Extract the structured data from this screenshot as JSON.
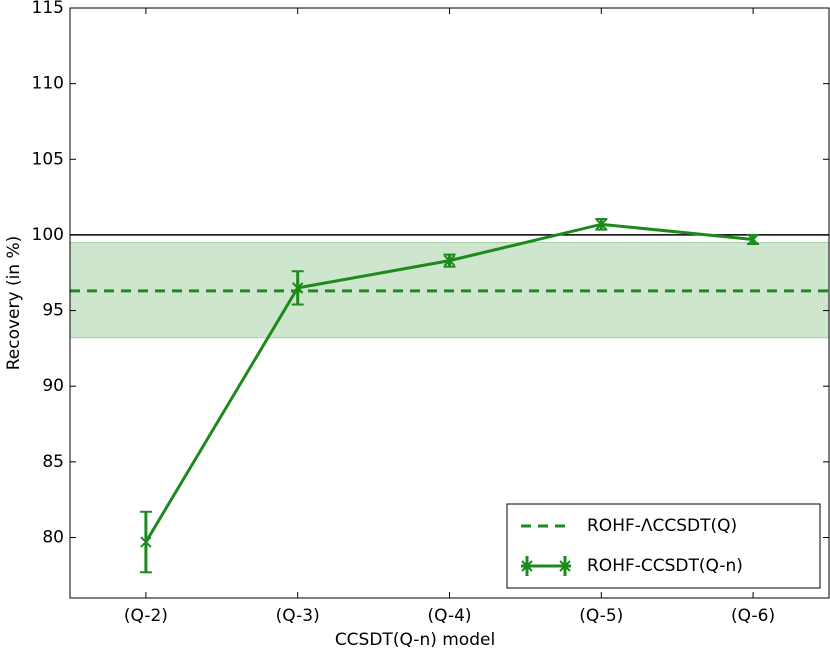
{
  "chart_data": {
    "type": "line",
    "xlabel": "CCSDT(Q-n) model",
    "ylabel": "Recovery (in %)",
    "categories": [
      "(Q-2)",
      "(Q-3)",
      "(Q-4)",
      "(Q-5)",
      "(Q-6)"
    ],
    "series": [
      {
        "name": "ROHF-CCSDT(Q-n)",
        "color": "#1e8a1e",
        "values": [
          79.7,
          96.5,
          98.3,
          100.7,
          99.7
        ],
        "errors": [
          2.0,
          1.1,
          0.4,
          0.35,
          0.3
        ]
      }
    ],
    "reference": {
      "name": "ROHF-ΛCCSDT(Q)",
      "value": 96.3,
      "band": [
        93.2,
        99.5
      ],
      "color": "#1e8a1e"
    },
    "hline": 100,
    "ylim": [
      76,
      115
    ],
    "yticks": [
      80,
      85,
      90,
      95,
      100,
      105,
      110,
      115
    ],
    "legend": "lower right"
  }
}
